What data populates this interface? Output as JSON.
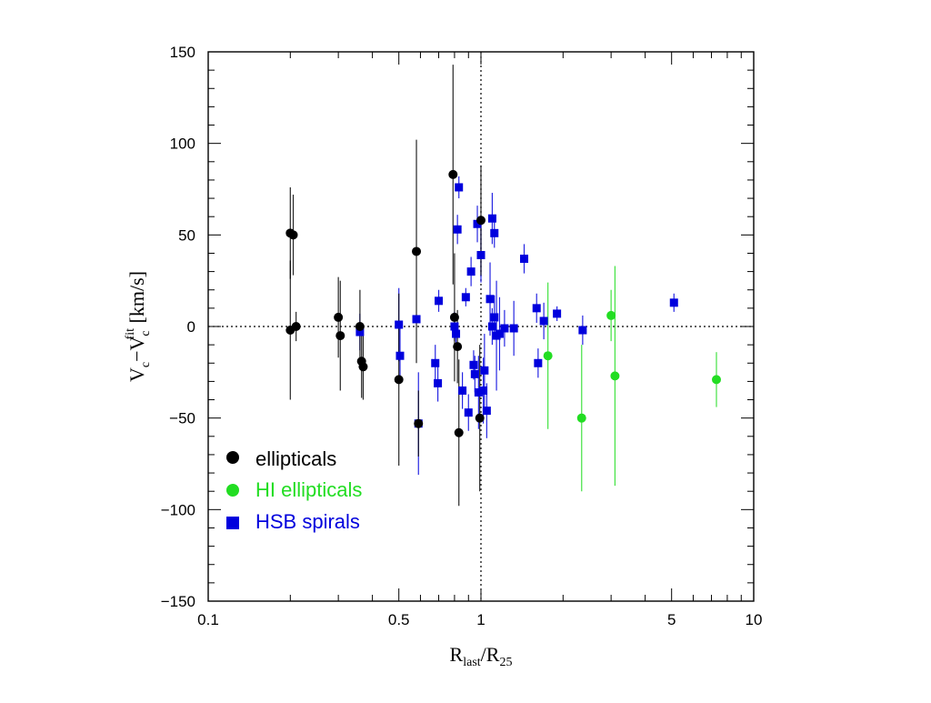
{
  "chart_data": {
    "type": "scatter",
    "xscale": "log",
    "xlim": [
      0.1,
      10
    ],
    "ylim": [
      -150,
      150
    ],
    "xticks": [
      {
        "value": 0.1,
        "label": "0.1"
      },
      {
        "value": 0.5,
        "label": "0.5"
      },
      {
        "value": 1,
        "label": "1"
      },
      {
        "value": 5,
        "label": "5"
      },
      {
        "value": 10,
        "label": "10"
      }
    ],
    "yticks": [
      {
        "value": 150,
        "label": "150"
      },
      {
        "value": 100,
        "label": "100"
      },
      {
        "value": 50,
        "label": "50"
      },
      {
        "value": 0,
        "label": "0"
      },
      {
        "value": -50,
        "label": "−50"
      },
      {
        "value": -100,
        "label": "−100"
      },
      {
        "value": -150,
        "label": "−150"
      }
    ],
    "xlabel": {
      "main": "R",
      "sub1": "last",
      "mid": "/R",
      "sub2": "25"
    },
    "ylabel": {
      "p1": "V",
      "s1": "c",
      "p2": "−V",
      "s2": "c",
      "sup": "fit",
      "p3": " [km/s]"
    },
    "reference_lines": {
      "x": 1,
      "y": 0,
      "style": "dotted"
    },
    "legend_position": "lower-left",
    "series": [
      {
        "name": "ellipticals",
        "color": "#000000",
        "marker": "circle",
        "points": [
          [
            0.2,
            51,
            25
          ],
          [
            0.205,
            50,
            22
          ],
          [
            0.2,
            -2,
            38
          ],
          [
            0.21,
            0,
            8
          ],
          [
            0.3,
            5,
            22
          ],
          [
            0.305,
            -5,
            30
          ],
          [
            0.36,
            0,
            20
          ],
          [
            0.365,
            -19,
            20
          ],
          [
            0.37,
            -22,
            18
          ],
          [
            0.5,
            -29,
            47
          ],
          [
            0.58,
            41,
            61
          ],
          [
            0.59,
            -53,
            18
          ],
          [
            0.79,
            83,
            60
          ],
          [
            0.8,
            5,
            35
          ],
          [
            0.82,
            -11,
            20
          ],
          [
            0.83,
            -58,
            40
          ],
          [
            1.0,
            58,
            30
          ],
          [
            0.99,
            -50,
            40
          ]
        ]
      },
      {
        "name": "HI ellipticals",
        "color": "#22dd22",
        "marker": "circle",
        "points": [
          [
            1.76,
            -16,
            40
          ],
          [
            2.34,
            -50,
            40
          ],
          [
            3.0,
            6,
            14
          ],
          [
            3.1,
            -27,
            60
          ],
          [
            7.3,
            -29,
            15
          ]
        ]
      },
      {
        "name": "HSB spirals",
        "color": "#0000dd",
        "marker": "square",
        "points": [
          [
            0.36,
            -3,
            10
          ],
          [
            0.5,
            1,
            20
          ],
          [
            0.505,
            -16,
            15
          ],
          [
            0.58,
            4,
            0
          ],
          [
            0.59,
            -53,
            28
          ],
          [
            0.68,
            -20,
            10
          ],
          [
            0.695,
            -31,
            10
          ],
          [
            0.7,
            14,
            6
          ],
          [
            0.8,
            0,
            8
          ],
          [
            0.81,
            -4,
            6
          ],
          [
            0.82,
            53,
            8
          ],
          [
            0.83,
            76,
            6
          ],
          [
            0.855,
            -35,
            10
          ],
          [
            0.88,
            16,
            5
          ],
          [
            0.9,
            -47,
            10
          ],
          [
            0.92,
            30,
            8
          ],
          [
            0.94,
            -21,
            8
          ],
          [
            0.95,
            -26,
            10
          ],
          [
            0.97,
            56,
            10
          ],
          [
            0.98,
            -36,
            20
          ],
          [
            1.0,
            39,
            15
          ],
          [
            1.02,
            -35,
            18
          ],
          [
            1.03,
            -24,
            20
          ],
          [
            1.05,
            -46,
            15
          ],
          [
            1.08,
            15,
            20
          ],
          [
            1.1,
            59,
            14
          ],
          [
            1.1,
            0,
            10
          ],
          [
            1.12,
            51,
            8
          ],
          [
            1.12,
            5,
            12
          ],
          [
            1.14,
            -5,
            30
          ],
          [
            1.17,
            -4,
            20
          ],
          [
            1.22,
            -1,
            10
          ],
          [
            1.32,
            -1,
            15
          ],
          [
            1.44,
            37,
            8
          ],
          [
            1.6,
            10,
            8
          ],
          [
            1.62,
            -20,
            8
          ],
          [
            1.7,
            3,
            10
          ],
          [
            1.9,
            7,
            4
          ],
          [
            2.36,
            -2,
            8
          ],
          [
            5.1,
            13,
            5
          ]
        ]
      }
    ]
  }
}
